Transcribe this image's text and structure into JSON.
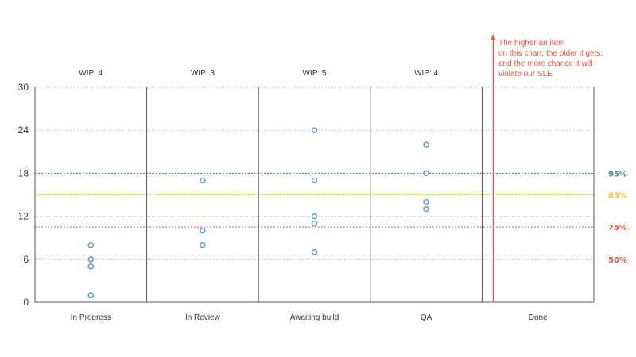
{
  "chart_data": {
    "type": "scatter",
    "title": "",
    "xlabel": "",
    "ylabel": "",
    "ylim": [
      0,
      30
    ],
    "yticks": [
      0,
      6,
      12,
      18,
      24,
      30
    ],
    "grid": "horizontal",
    "categories": [
      "In Progress",
      "In Review",
      "Awaiting build",
      "QA",
      "Done"
    ],
    "wip_labels": [
      "WIP: 4",
      "WIP: 3",
      "WIP: 5",
      "WIP: 4",
      ""
    ],
    "points": [
      {
        "category": "In Progress",
        "values": [
          8,
          6,
          5,
          1
        ]
      },
      {
        "category": "In Review",
        "values": [
          17,
          10,
          8
        ]
      },
      {
        "category": "Awaiting build",
        "values": [
          24,
          17,
          12,
          11,
          7
        ]
      },
      {
        "category": "QA",
        "values": [
          22,
          18,
          14,
          13
        ]
      },
      {
        "category": "Done",
        "values": []
      }
    ],
    "percentile_lines": [
      {
        "label": "95%",
        "value": 18,
        "color": "#4a8fa3"
      },
      {
        "label": "85%",
        "value": 15,
        "color": "#f2c23a"
      },
      {
        "label": "75%",
        "value": 10.5,
        "color": "#e6533c"
      },
      {
        "label": "50%",
        "value": 6,
        "color": "#e6533c"
      }
    ],
    "annotation": {
      "lines": [
        "The higher an item",
        "on this chart, the older it gets,",
        "and the more chance it will",
        "violate our SLE"
      ],
      "color": "#e6533c"
    },
    "point_color": "#5b9bd5"
  }
}
